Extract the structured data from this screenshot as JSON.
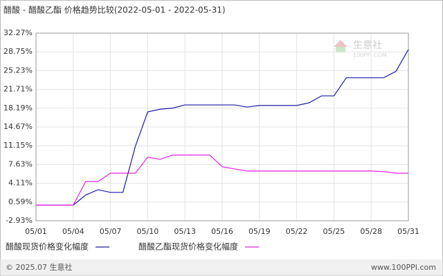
{
  "chart_data": {
    "type": "line",
    "title": "醋酸 - 醋酸乙酯 价格趋势比较(2022-05-01 - 2022-05-31)",
    "categories": [
      "05/01",
      null,
      null,
      "05/04",
      null,
      null,
      "05/07",
      null,
      null,
      "05/10",
      null,
      null,
      "05/13",
      null,
      null,
      "05/16",
      null,
      null,
      "05/19",
      null,
      null,
      "05/22",
      null,
      null,
      "05/25",
      null,
      null,
      "05/28",
      null,
      null,
      "05/31"
    ],
    "series": [
      {
        "name": "醋酸现货价格变化幅度",
        "color": "#1a1aa6",
        "values": [
          0,
          0,
          0,
          0,
          1.9,
          2.9,
          2.4,
          2.4,
          11.0,
          17.5,
          18.0,
          18.2,
          18.8,
          18.8,
          18.8,
          18.8,
          18.8,
          18.4,
          18.7,
          18.7,
          18.7,
          18.7,
          19.2,
          20.5,
          20.5,
          23.9,
          23.9,
          23.9,
          23.9,
          25.1,
          29.2
        ]
      },
      {
        "name": "醋酸乙酯现货价格变化幅度",
        "color": "#e020e0",
        "values": [
          0,
          0,
          0,
          0,
          4.45,
          4.45,
          6.0,
          6.0,
          6.0,
          9.0,
          8.6,
          9.4,
          9.4,
          9.4,
          9.4,
          7.2,
          6.8,
          6.4,
          6.4,
          6.4,
          6.4,
          6.4,
          6.4,
          6.4,
          6.4,
          6.4,
          6.4,
          6.4,
          6.3,
          6.0,
          6.0
        ]
      }
    ],
    "ylim": [
      -2.93,
      32.27
    ],
    "yticks": [
      {
        "value": -2.93,
        "label": "-2.93%"
      },
      {
        "value": 0.59,
        "label": "0.59%"
      },
      {
        "value": 4.11,
        "label": "4.11%"
      },
      {
        "value": 7.63,
        "label": "7.63%"
      },
      {
        "value": 11.15,
        "label": "11.15%"
      },
      {
        "value": 14.67,
        "label": "14.67%"
      },
      {
        "value": 18.19,
        "label": "18.19%"
      },
      {
        "value": 21.71,
        "label": "21.71%"
      },
      {
        "value": 25.23,
        "label": "25.23%"
      },
      {
        "value": 28.75,
        "label": "28.75%"
      },
      {
        "value": 32.27,
        "label": "32.27%"
      }
    ],
    "grid": true,
    "watermark": {
      "name": "生意社",
      "site": "100PPI.COM"
    },
    "footer": {
      "copyright": "© 2025.07 生意社",
      "site": "www.100PPI.com"
    }
  }
}
